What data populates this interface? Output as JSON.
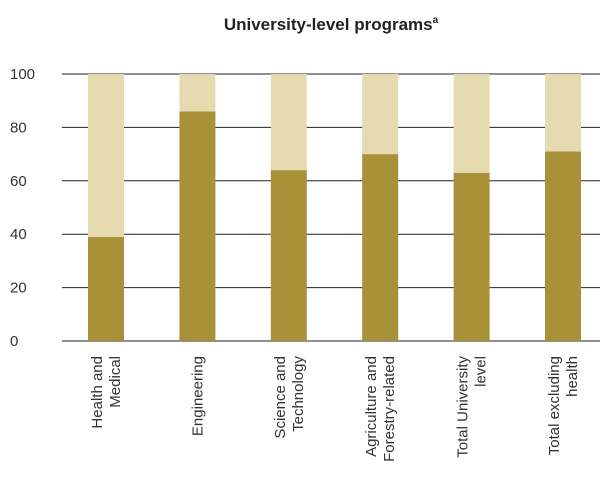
{
  "chart_data": {
    "type": "bar",
    "stacked": true,
    "title": "University-level programs",
    "title_superscript": "a",
    "xlabel": "",
    "ylabel": "",
    "ylim": [
      0,
      100
    ],
    "yticks": [
      "0",
      "20",
      "40",
      "60",
      "80",
      "100"
    ],
    "ytick_values": [
      0,
      20,
      40,
      60,
      80,
      100
    ],
    "grid": true,
    "legend": "none",
    "categories": [
      [
        "Health and",
        "Medical"
      ],
      [
        "Engineering"
      ],
      [
        "Science and",
        "Technology"
      ],
      [
        "Agriculture and",
        "Forestry-related"
      ],
      [
        "Total University",
        "level"
      ],
      [
        "Total excluding",
        "health"
      ]
    ],
    "series": [
      {
        "values": [
          39,
          86,
          64,
          70,
          63,
          71
        ],
        "color": "#a89139"
      },
      {
        "values": [
          61,
          14,
          36,
          30,
          37,
          29
        ],
        "color": "#e6dab0"
      }
    ],
    "colors": {
      "grid": "#222222",
      "text": "#333333"
    }
  }
}
